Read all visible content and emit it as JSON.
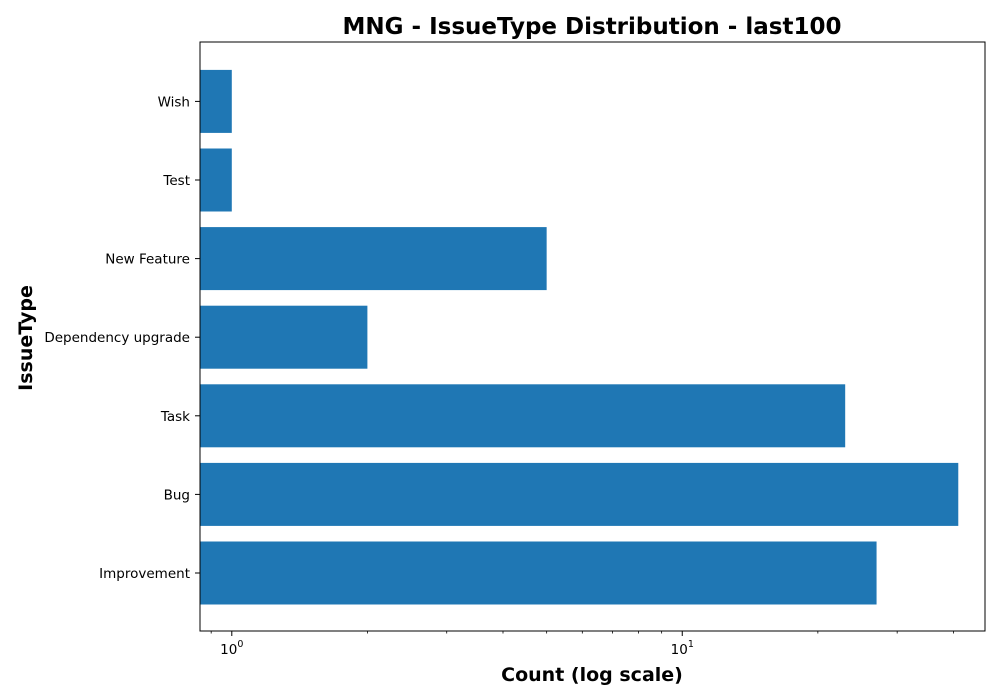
{
  "chart_data": {
    "type": "bar",
    "orientation": "horizontal",
    "title": "MNG - IssueType Distribution - last100",
    "xlabel": "Count (log scale)",
    "ylabel": "IssueType",
    "x_scale": "log",
    "xlim": [
      0.85,
      47
    ],
    "categories": [
      "Improvement",
      "Bug",
      "Task",
      "Dependency upgrade",
      "New Feature",
      "Test",
      "Wish"
    ],
    "values": [
      27,
      41,
      23,
      2,
      5,
      1,
      1
    ],
    "x_ticks": [
      {
        "value": 1,
        "base": "10",
        "exp": "0"
      },
      {
        "value": 10,
        "base": "10",
        "exp": "1"
      }
    ],
    "bar_color": "#1f77b4",
    "grid": false,
    "legend": "none"
  }
}
